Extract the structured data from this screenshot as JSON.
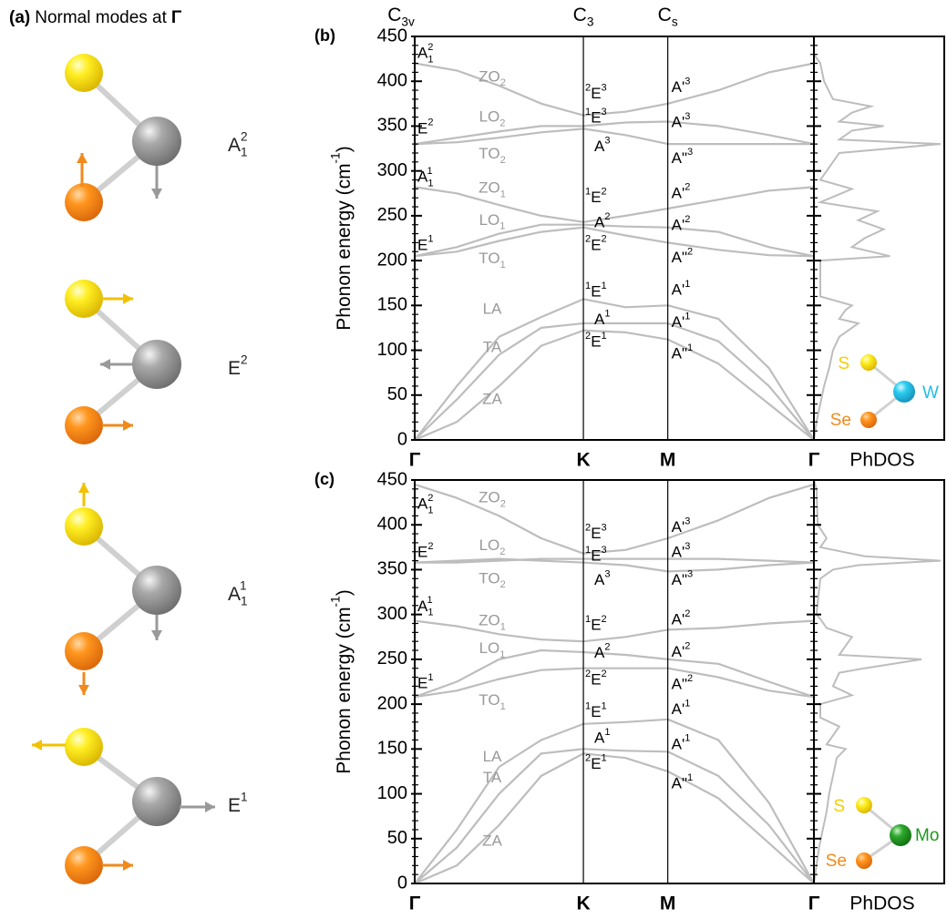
{
  "panel_a": {
    "label": "(a)",
    "title": "Normal modes at",
    "symbol": "Γ",
    "modes": [
      {
        "base": "A",
        "sub": "1",
        "sup": "2"
      },
      {
        "base": "E",
        "sup": "2"
      },
      {
        "base": "A",
        "sub": "1",
        "sup": "1"
      },
      {
        "base": "E",
        "sup": "1"
      }
    ]
  },
  "chart_data": [
    {
      "type": "line",
      "panel_label": "(b)",
      "color": "#bdbdbd",
      "symmetry_labels": [
        {
          "base": "C",
          "sub": "3v"
        },
        {
          "base": "C",
          "sub": "3"
        },
        {
          "base": "C",
          "sub": "s"
        }
      ],
      "ylabel": {
        "base": "Phonon energy (cm",
        "sup": "-1",
        "tail": ")"
      },
      "ylim": [
        0,
        450
      ],
      "yticks": [
        0,
        50,
        100,
        150,
        200,
        250,
        300,
        350,
        400,
        450
      ],
      "yminor_step": 10,
      "xlim": [
        0,
        3.155
      ],
      "xticks": [
        {
          "value": 0,
          "label": "Γ"
        },
        {
          "value": 1.333,
          "label": "K"
        },
        {
          "value": 2.0,
          "label": "M"
        },
        {
          "value": 3.155,
          "label": "Γ"
        }
      ],
      "x": [
        0,
        0.333,
        0.667,
        1.0,
        1.333,
        1.667,
        2.0,
        2.4,
        2.8,
        3.155
      ],
      "branches": [
        {
          "label": {
            "base": "ZO",
            "sub": "2"
          },
          "values": [
            420,
            412,
            395,
            375,
            362,
            366,
            375,
            390,
            410,
            420
          ]
        },
        {
          "label": {
            "base": "LO",
            "sub": "2"
          },
          "values": [
            330,
            337,
            344,
            350,
            350,
            354,
            355,
            350,
            340,
            330
          ]
        },
        {
          "label": {
            "base": "TO",
            "sub": "2"
          },
          "values": [
            330,
            332,
            337,
            343,
            347,
            340,
            330,
            330,
            330,
            330
          ]
        },
        {
          "label": {
            "base": "ZO",
            "sub": "1"
          },
          "values": [
            282,
            275,
            262,
            250,
            243,
            250,
            258,
            268,
            278,
            282
          ]
        },
        {
          "label": {
            "base": "LO",
            "sub": "1"
          },
          "values": [
            205,
            215,
            230,
            240,
            240,
            238,
            237,
            232,
            215,
            205
          ]
        },
        {
          "label": {
            "base": "TO",
            "sub": "1"
          },
          "values": [
            205,
            210,
            222,
            232,
            237,
            228,
            220,
            212,
            206,
            205
          ]
        },
        {
          "label": {
            "base": "LA"
          },
          "values": [
            0,
            60,
            115,
            137,
            157,
            148,
            150,
            135,
            80,
            0
          ]
        },
        {
          "label": {
            "base": "TA"
          },
          "values": [
            0,
            45,
            95,
            125,
            130,
            130,
            130,
            110,
            60,
            0
          ]
        },
        {
          "label": {
            "base": "ZA"
          },
          "values": [
            0,
            20,
            60,
            105,
            122,
            120,
            112,
            85,
            40,
            0
          ]
        }
      ],
      "gamma_labels": [
        {
          "base": "A",
          "sub": "1",
          "sup": "2"
        },
        {
          "base": "E",
          "sup": "2"
        },
        {
          "base": "A",
          "sub": "1",
          "sup": "1"
        },
        {
          "base": "E",
          "sup": "1"
        }
      ],
      "k_labels": [
        {
          "pre": "2",
          "base": "E",
          "sup": "3"
        },
        {
          "pre": "1",
          "base": "E",
          "sup": "3"
        },
        {
          "base": "A",
          "sup": "3"
        },
        {
          "pre": "1",
          "base": "E",
          "sup": "2"
        },
        {
          "base": "A",
          "sup": "2"
        },
        {
          "pre": "2",
          "base": "E",
          "sup": "2"
        },
        {
          "pre": "1",
          "base": "E",
          "sup": "1"
        },
        {
          "base": "A",
          "sup": "1"
        },
        {
          "pre": "2",
          "base": "E",
          "sup": "1"
        }
      ],
      "m_labels": [
        {
          "base": "A'",
          "sup": "3"
        },
        {
          "base": "A'",
          "sup": "3"
        },
        {
          "base": "A\"",
          "sup": "3"
        },
        {
          "base": "A'",
          "sup": "2"
        },
        {
          "base": "A'",
          "sup": "2"
        },
        {
          "base": "A\"",
          "sup": "2"
        },
        {
          "base": "A'",
          "sup": "1"
        },
        {
          "base": "A'",
          "sup": "1"
        },
        {
          "base": "A\"",
          "sup": "1"
        }
      ],
      "dos_label": "PhDOS",
      "dos": {
        "energy": [
          0,
          20,
          40,
          60,
          80,
          100,
          115,
          125,
          130,
          135,
          145,
          150,
          160,
          200,
          205,
          215,
          225,
          235,
          240,
          245,
          255,
          265,
          280,
          290,
          320,
          330,
          335,
          345,
          350,
          355,
          365,
          372,
          380,
          400,
          420,
          430
        ],
        "values": [
          0,
          0.02,
          0.05,
          0.08,
          0.12,
          0.15,
          0.2,
          0.3,
          0.35,
          0.2,
          0.25,
          0.3,
          0.05,
          0.05,
          0.6,
          0.3,
          0.4,
          0.55,
          0.45,
          0.35,
          0.5,
          0.05,
          0.3,
          0.05,
          0.2,
          1.0,
          0.2,
          0.3,
          0.55,
          0.2,
          0.3,
          0.45,
          0.15,
          0.08,
          0.05,
          0
        ]
      },
      "atoms": [
        {
          "name": "S",
          "color": "#f2cf00"
        },
        {
          "name": "W",
          "color": "#22bde6"
        },
        {
          "name": "Se",
          "color": "#f08a1c"
        }
      ]
    },
    {
      "type": "line",
      "panel_label": "(c)",
      "color": "#bdbdbd",
      "ylabel": {
        "base": "Phonon energy (cm",
        "sup": "-1",
        "tail": ")"
      },
      "ylim": [
        0,
        450
      ],
      "yticks": [
        0,
        50,
        100,
        150,
        200,
        250,
        300,
        350,
        400,
        450
      ],
      "yminor_step": 10,
      "xlim": [
        0,
        3.155
      ],
      "xticks": [
        {
          "value": 0,
          "label": "Γ"
        },
        {
          "value": 1.333,
          "label": "K"
        },
        {
          "value": 2.0,
          "label": "M"
        },
        {
          "value": 3.155,
          "label": "Γ"
        }
      ],
      "x": [
        0,
        0.333,
        0.667,
        1.0,
        1.333,
        1.667,
        2.0,
        2.4,
        2.8,
        3.155
      ],
      "branches": [
        {
          "label": {
            "base": "ZO",
            "sub": "2"
          },
          "values": [
            445,
            430,
            410,
            385,
            368,
            372,
            385,
            405,
            430,
            445
          ]
        },
        {
          "label": {
            "base": "LO",
            "sub": "2"
          },
          "values": [
            358,
            358,
            360,
            362,
            362,
            362,
            362,
            362,
            360,
            358
          ]
        },
        {
          "label": {
            "base": "TO",
            "sub": "2"
          },
          "values": [
            358,
            360,
            362,
            360,
            358,
            355,
            348,
            350,
            355,
            358
          ]
        },
        {
          "label": {
            "base": "ZO",
            "sub": "1"
          },
          "values": [
            293,
            287,
            278,
            272,
            270,
            275,
            283,
            285,
            290,
            293
          ]
        },
        {
          "label": {
            "base": "LO",
            "sub": "1"
          },
          "values": [
            208,
            225,
            250,
            260,
            258,
            255,
            250,
            245,
            225,
            208
          ]
        },
        {
          "label": {
            "base": "TO",
            "sub": "1"
          },
          "values": [
            208,
            215,
            228,
            238,
            240,
            240,
            240,
            230,
            215,
            208
          ]
        },
        {
          "label": {
            "base": "LA"
          },
          "values": [
            0,
            60,
            130,
            160,
            178,
            180,
            183,
            160,
            90,
            0
          ]
        },
        {
          "label": {
            "base": "TA"
          },
          "values": [
            0,
            40,
            100,
            145,
            150,
            148,
            147,
            120,
            65,
            0
          ]
        },
        {
          "label": {
            "base": "ZA"
          },
          "values": [
            0,
            20,
            65,
            120,
            145,
            140,
            125,
            95,
            45,
            0
          ]
        }
      ],
      "gamma_labels": [
        {
          "base": "A",
          "sub": "1",
          "sup": "2"
        },
        {
          "base": "E",
          "sup": "2"
        },
        {
          "base": "A",
          "sub": "1",
          "sup": "1"
        },
        {
          "base": "E",
          "sup": "1"
        }
      ],
      "k_labels": [
        {
          "pre": "2",
          "base": "E",
          "sup": "3"
        },
        {
          "pre": "1",
          "base": "E",
          "sup": "3"
        },
        {
          "base": "A",
          "sup": "3"
        },
        {
          "pre": "1",
          "base": "E",
          "sup": "2"
        },
        {
          "base": "A",
          "sup": "2"
        },
        {
          "pre": "2",
          "base": "E",
          "sup": "2"
        },
        {
          "pre": "1",
          "base": "E",
          "sup": "1"
        },
        {
          "base": "A",
          "sup": "1"
        },
        {
          "pre": "2",
          "base": "E",
          "sup": "1"
        }
      ],
      "m_labels": [
        {
          "base": "A'",
          "sup": "3"
        },
        {
          "base": "A'",
          "sup": "3"
        },
        {
          "base": "A\"",
          "sup": "3"
        },
        {
          "base": "A'",
          "sup": "2"
        },
        {
          "base": "A'",
          "sup": "2"
        },
        {
          "base": "A\"",
          "sup": "2"
        },
        {
          "base": "A'",
          "sup": "1"
        },
        {
          "base": "A'",
          "sup": "1"
        },
        {
          "base": "A\"",
          "sup": "1"
        }
      ],
      "dos_label": "PhDOS",
      "dos": {
        "energy": [
          0,
          20,
          40,
          60,
          80,
          100,
          120,
          140,
          150,
          155,
          165,
          175,
          185,
          200,
          210,
          220,
          235,
          240,
          250,
          255,
          265,
          275,
          285,
          295,
          300,
          340,
          350,
          355,
          360,
          365,
          375,
          385,
          400,
          440,
          450
        ],
        "values": [
          0,
          0.02,
          0.04,
          0.07,
          0.1,
          0.12,
          0.15,
          0.18,
          0.25,
          0.1,
          0.15,
          0.2,
          0.05,
          0.05,
          0.3,
          0.15,
          0.2,
          0.4,
          0.85,
          0.2,
          0.25,
          0.3,
          0.1,
          0.05,
          0.02,
          0.05,
          0.15,
          0.35,
          1.0,
          0.4,
          0.05,
          0.1,
          0.03,
          0.02,
          0
        ]
      },
      "atoms": [
        {
          "name": "S",
          "color": "#f2cf00"
        },
        {
          "name": "Mo",
          "color": "#1a9a1a"
        },
        {
          "name": "Se",
          "color": "#f08a1c"
        }
      ]
    }
  ]
}
